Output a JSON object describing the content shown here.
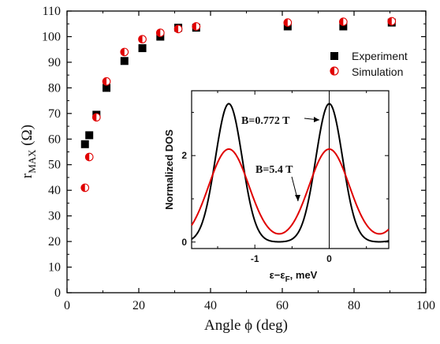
{
  "chart_data": [
    {
      "type": "scatter",
      "xlabel": "Angle ϕ (deg)",
      "ylabel_main": "r",
      "ylabel_sub": "MAX",
      "ylabel_unit": " (Ω)",
      "xlim": [
        0,
        100
      ],
      "ylim": [
        0,
        110
      ],
      "x_ticks": [
        "0",
        "20",
        "40",
        "60",
        "80",
        "100"
      ],
      "y_ticks": [
        "0",
        "10",
        "20",
        "30",
        "40",
        "50",
        "60",
        "70",
        "80",
        "90",
        "100",
        "110"
      ],
      "legend_position": "top-right",
      "series": [
        {
          "name": "Experiment",
          "marker": "square",
          "color": "#000000",
          "points": [
            [
              5,
              58
            ],
            [
              6.2,
              61.5
            ],
            [
              8.2,
              69.5
            ],
            [
              11,
              80
            ],
            [
              16,
              90.5
            ],
            [
              21,
              95.5
            ],
            [
              26,
              100
            ],
            [
              31,
              103.5
            ],
            [
              36,
              103.5
            ],
            [
              61.5,
              104
            ],
            [
              77,
              104
            ],
            [
              90.5,
              105.5
            ]
          ]
        },
        {
          "name": "Simulation",
          "marker": "half-filled-circle",
          "color": "#e00000",
          "points": [
            [
              5,
              41
            ],
            [
              6.2,
              53
            ],
            [
              8.2,
              68.5
            ],
            [
              11,
              82.5
            ],
            [
              16,
              94
            ],
            [
              21,
              99
            ],
            [
              26,
              101.5
            ],
            [
              31,
              103
            ],
            [
              36,
              104
            ],
            [
              61.5,
              105.5
            ],
            [
              77,
              105.8
            ],
            [
              90.5,
              106
            ]
          ]
        }
      ]
    },
    {
      "type": "line",
      "placement": "inset",
      "xlabel_prefix": "ε−ε",
      "xlabel_sub": "F",
      "xlabel_suffix": ", meV",
      "ylabel": "Normalized DOS",
      "xlim": [
        -1.85,
        0.8
      ],
      "ylim": [
        -0.15,
        3.5
      ],
      "x_ticks": [
        {
          "value": -1,
          "label": "-1"
        },
        {
          "value": 0,
          "label": "0"
        }
      ],
      "y_ticks": [
        {
          "value": 0,
          "label": "0"
        },
        {
          "value": 2,
          "label": "2"
        }
      ],
      "vertical_marker_x": 0,
      "series": [
        {
          "name": "B=0.772 T",
          "color": "#000000",
          "peak_centers": [
            -1.35,
            0
          ],
          "amplitude": 3.2,
          "sigma": 0.18
        },
        {
          "name": "B=5.4 T",
          "color": "#e00000",
          "peak_centers": [
            -1.35,
            0
          ],
          "amplitude": 2.15,
          "sigma": 0.27
        }
      ],
      "annotations": [
        {
          "text": "B=0.772 T",
          "target_series": 0
        },
        {
          "text": "B=5.4 T",
          "target_series": 1
        }
      ]
    }
  ]
}
